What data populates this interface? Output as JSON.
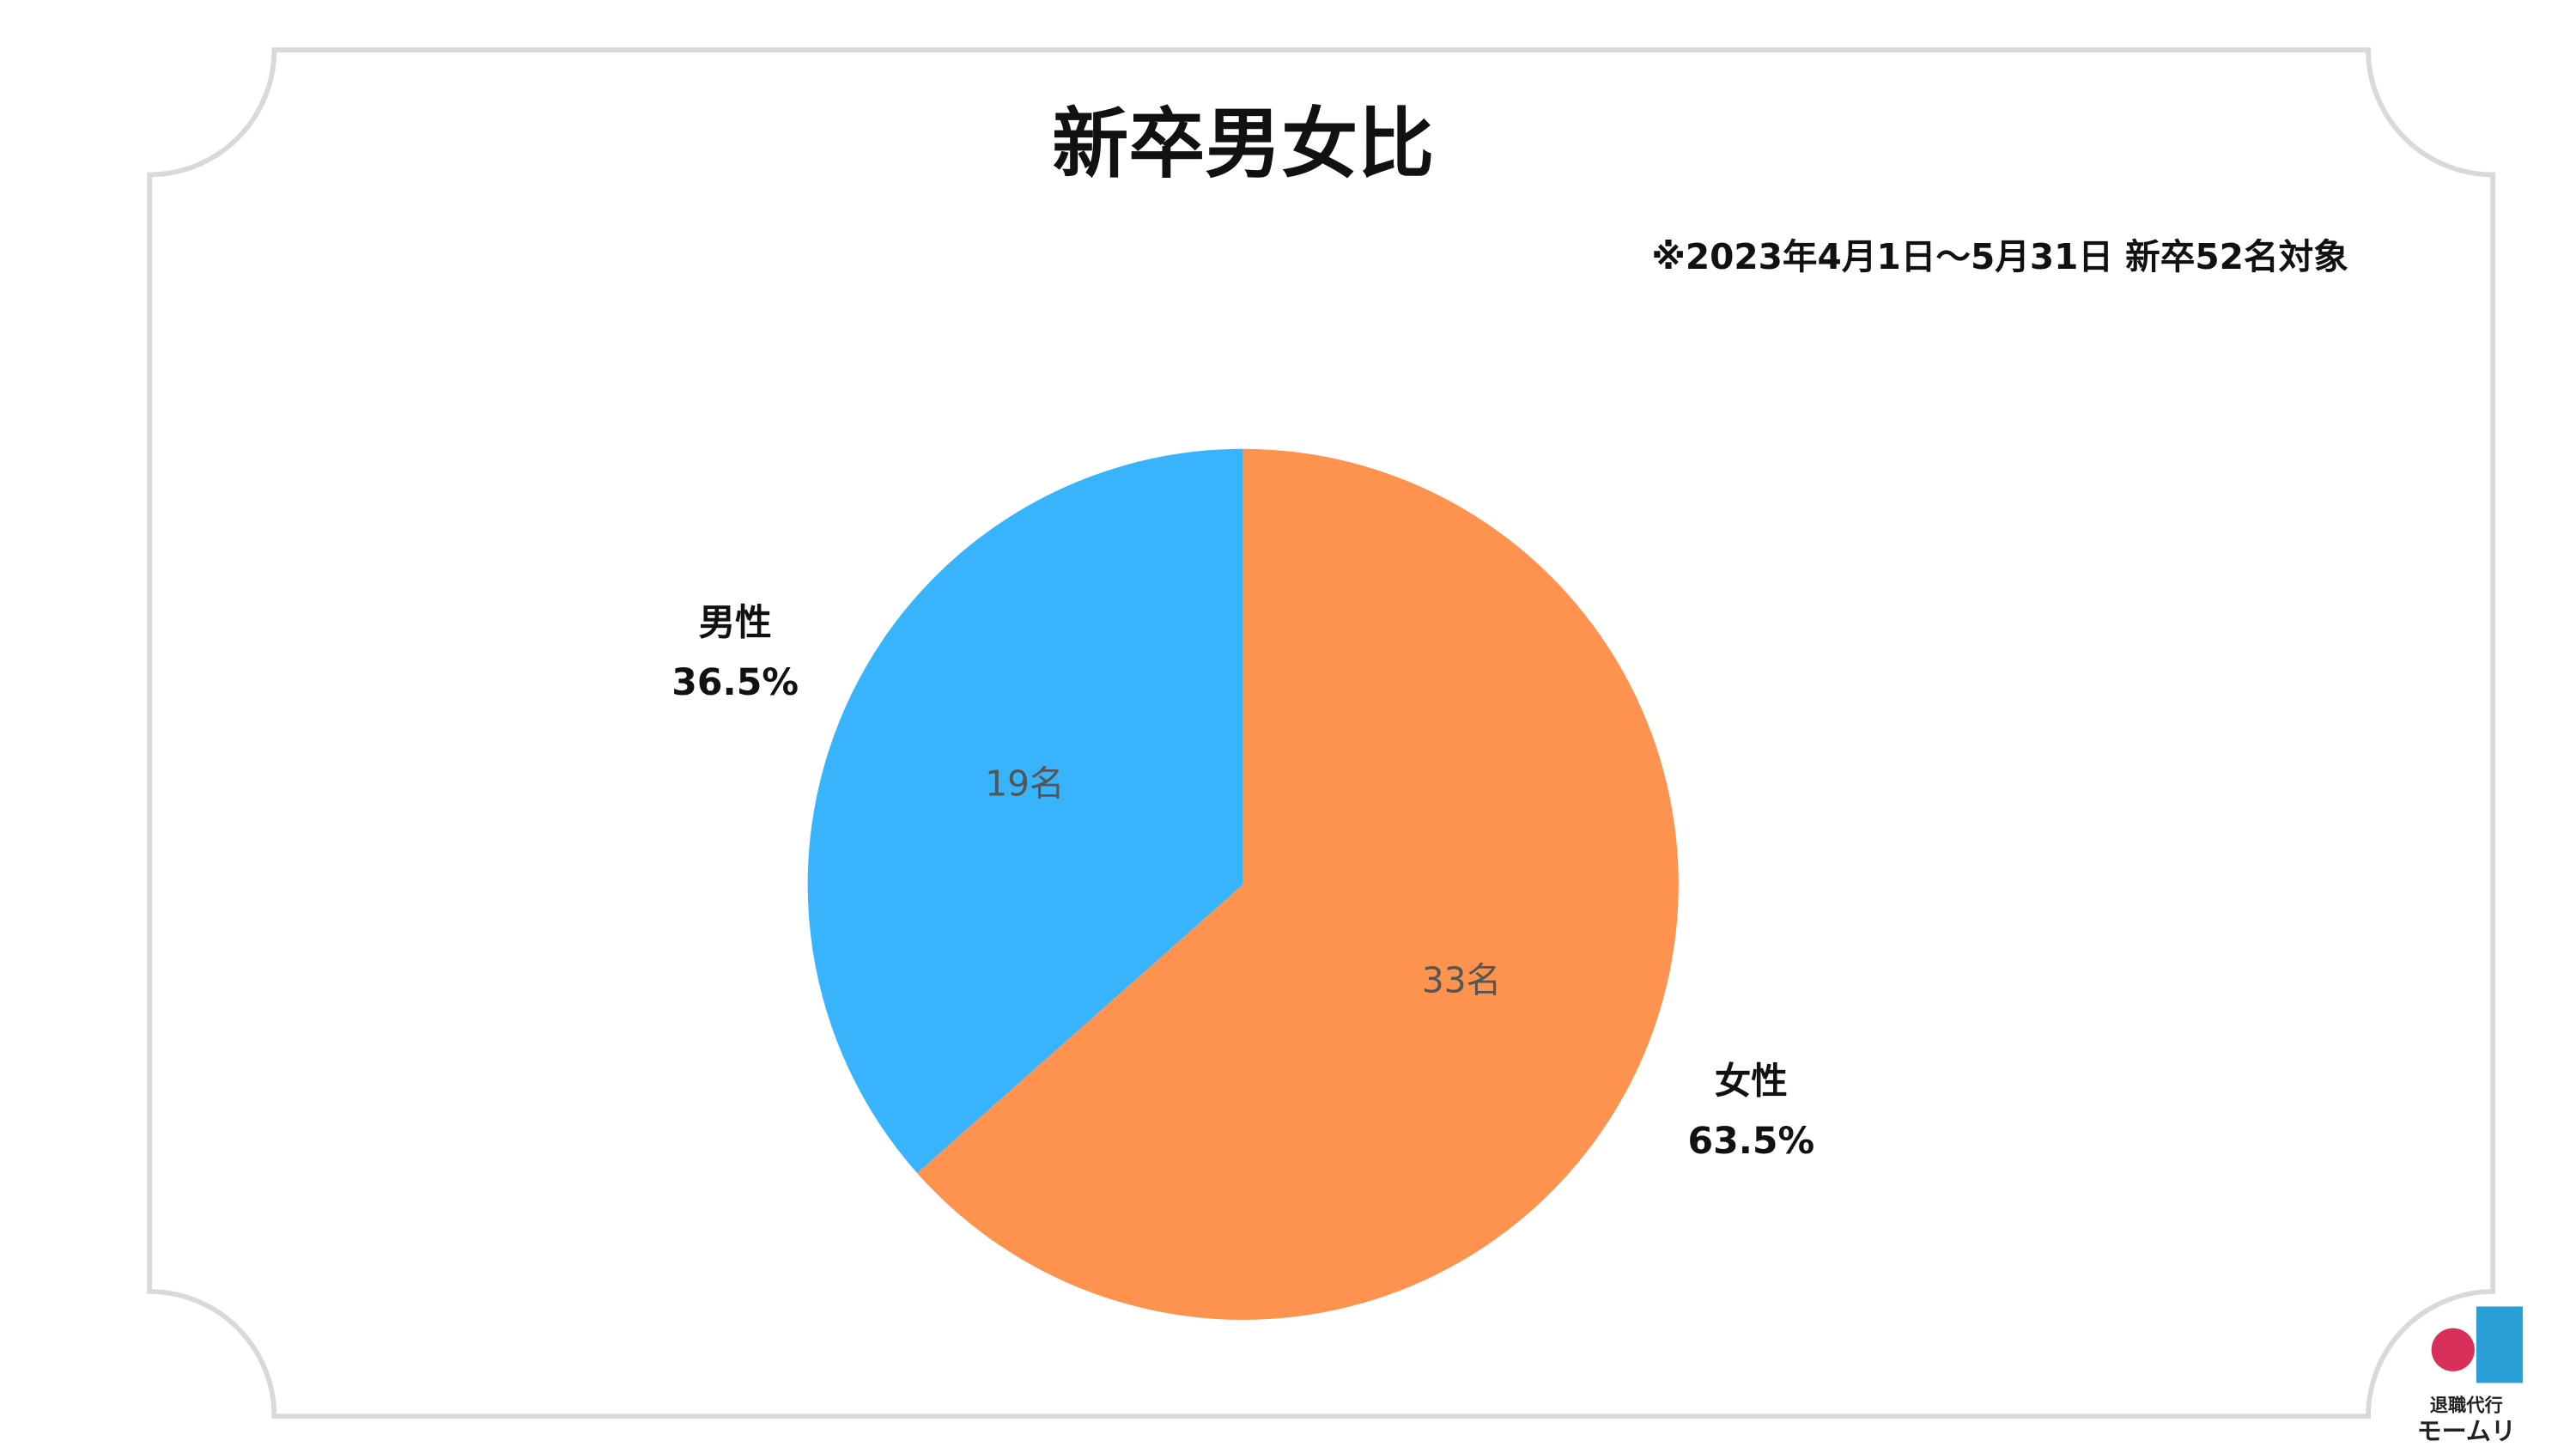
{
  "chart_data": {
    "type": "pie",
    "title": "新卒男女比",
    "subtitle": "※2023年4月1日〜5月31日 新卒52名対象",
    "categories": [
      "男性",
      "女性"
    ],
    "values": [
      19,
      33
    ],
    "value_labels": [
      "19名",
      "33名"
    ],
    "percentages": [
      36.5,
      63.5
    ],
    "percentage_labels": [
      "36.5%",
      "63.5%"
    ],
    "colors": [
      "#38b4fc",
      "#fd934f"
    ],
    "start_angle": 0,
    "direction": "counterclockwise"
  },
  "logo": {
    "line1": "退職代行",
    "line2": "モームリ"
  }
}
